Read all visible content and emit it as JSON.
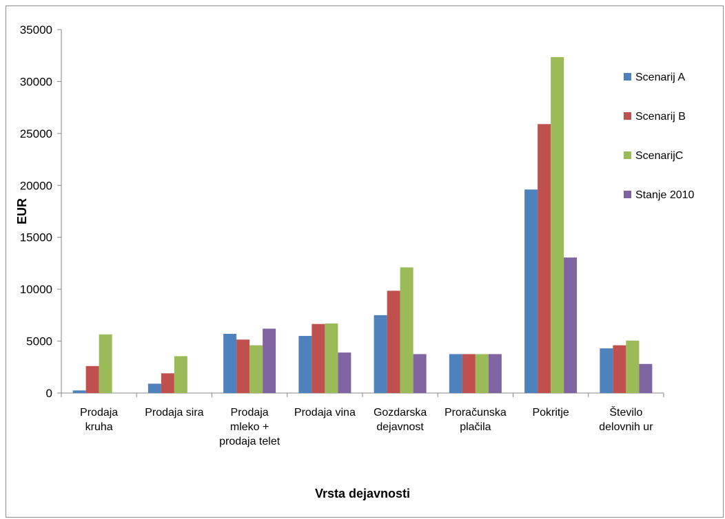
{
  "chart_data": {
    "type": "bar",
    "xlabel": "Vrsta dejavnosti",
    "ylabel": "EUR",
    "ylim": [
      0,
      35000
    ],
    "yticks": [
      0,
      5000,
      10000,
      15000,
      20000,
      25000,
      30000,
      35000
    ],
    "grid": false,
    "legend_position": "right",
    "categories": [
      [
        "Prodaja",
        "kruha"
      ],
      [
        "Prodaja sira"
      ],
      [
        "Prodaja",
        "mleko +",
        "prodaja telet"
      ],
      [
        "Prodaja vina"
      ],
      [
        "Gozdarska",
        "dejavnost"
      ],
      [
        "Proračunska",
        "plačila"
      ],
      [
        "Pokritje"
      ],
      [
        "Število",
        "delovnih ur"
      ]
    ],
    "series": [
      {
        "name": "Scenarij A",
        "color": "#4f81bd",
        "values": [
          250,
          900,
          5700,
          5500,
          7500,
          3750,
          19600,
          4300
        ]
      },
      {
        "name": "Scenarij B",
        "color": "#c0504d",
        "values": [
          2600,
          1900,
          5150,
          6650,
          9850,
          3750,
          25900,
          4600
        ]
      },
      {
        "name": "ScenarijC",
        "color": "#9bbb59",
        "values": [
          5650,
          3550,
          4600,
          6700,
          12100,
          3750,
          32350,
          5050
        ]
      },
      {
        "name": "Stanje 2010",
        "color": "#8064a2",
        "values": [
          0,
          0,
          6200,
          3900,
          3750,
          3750,
          13050,
          2800
        ]
      }
    ]
  }
}
